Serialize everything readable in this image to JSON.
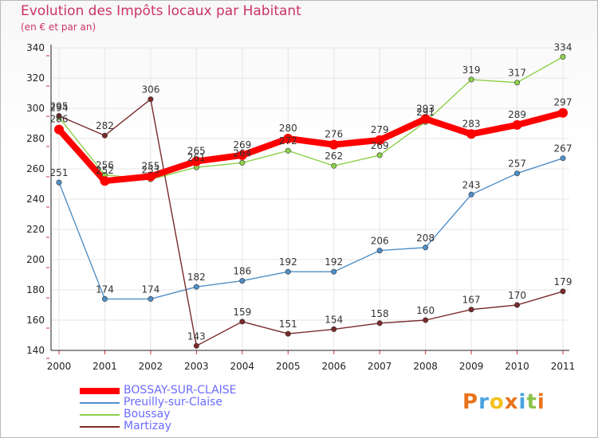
{
  "title": "Evolution des Impôts locaux par Habitant",
  "subtitle": "(en € et par an)",
  "logo": {
    "text": "Proxiti",
    "letters": [
      "P",
      "r",
      "o",
      "x",
      "i",
      "t",
      "i"
    ],
    "letter_colors": [
      "#e8731d",
      "#4aa3df",
      "#f2c21d",
      "#e8731d",
      "#4aa3df",
      "#8bc34a",
      "#e8731d"
    ]
  },
  "colors": {
    "title": "#cc3366",
    "legend_text": "#6b6bff",
    "axis": "#222222",
    "grid": "#e6e6e6"
  },
  "chart_data": {
    "type": "line",
    "title": "Evolution des Impôts locaux par Habitant",
    "subtitle": "(en € et par an)",
    "xlabel": "",
    "ylabel": "",
    "categories": [
      "2000",
      "2001",
      "2002",
      "2003",
      "2004",
      "2005",
      "2006",
      "2007",
      "2008",
      "2009",
      "2010",
      "2011"
    ],
    "ylim": [
      140,
      340
    ],
    "yticks": [
      140,
      160,
      180,
      200,
      220,
      240,
      260,
      280,
      300,
      320,
      340
    ],
    "grid": true,
    "legend_position": "bottom-left",
    "series": [
      {
        "name": "BOSSAY-SUR-CLAISE",
        "color": "#ff0000",
        "width": "thick",
        "values": [
          286,
          252,
          255,
          265,
          269,
          280,
          276,
          279,
          293,
          283,
          289,
          297
        ],
        "labels": [
          "286",
          "252",
          "255",
          "265",
          "269",
          "280",
          "276",
          "279",
          "293",
          "283",
          "289",
          "297"
        ]
      },
      {
        "name": "Preuilly-sur-Claise",
        "color": "#4f8fc8",
        "width": "thin",
        "values": [
          251,
          174,
          174,
          182,
          186,
          192,
          192,
          206,
          208,
          243,
          257,
          267
        ],
        "labels": [
          "251",
          "174",
          "174",
          "182",
          "186",
          "192",
          "192",
          "206",
          "208",
          "243",
          "257",
          "267"
        ]
      },
      {
        "name": "Boussay",
        "color": "#8ed04b",
        "width": "thin",
        "values": [
          294,
          256,
          253,
          261,
          264,
          272,
          262,
          269,
          291,
          319,
          317,
          334
        ],
        "labels": [
          "294",
          "256",
          "253",
          "261",
          "264",
          "272",
          "262",
          "269",
          "291",
          "319",
          "317",
          "334"
        ]
      },
      {
        "name": "Martizay",
        "color": "#7a2a2a",
        "width": "thin",
        "values": [
          295,
          282,
          306,
          143,
          159,
          151,
          154,
          158,
          160,
          167,
          170,
          179
        ],
        "labels": [
          "295",
          "282",
          "306",
          "143",
          "159",
          "151",
          "154",
          "158",
          "160",
          "167",
          "170",
          "179"
        ]
      }
    ]
  }
}
